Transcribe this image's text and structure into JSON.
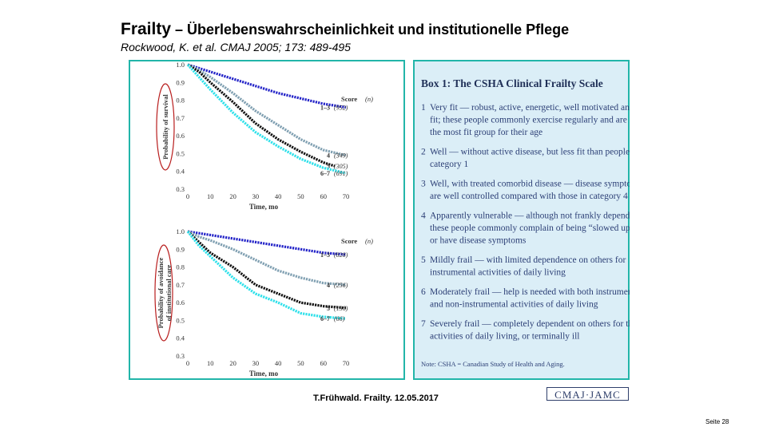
{
  "slide": {
    "title_bold": "Frailty",
    "title_rest": " – Überlebenswahrscheinlichkeit und institutionelle Pflege",
    "subtitle": "Rockwood, K. et al. CMAJ 2005; 173: 489-495",
    "footer": "T.Frühwald. Frailty. 12.05.2017",
    "logo_text": "CMAJ·JAMC",
    "page_number": "Seite 28"
  },
  "box": {
    "title": "Box 1: The CSHA Clinical Frailty Scale",
    "items": [
      {
        "num": "1",
        "lines": [
          "Very fit — robust, active, energetic, well motivated and",
          "fit; these people commonly exercise regularly and are in",
          "the most fit group for their age"
        ]
      },
      {
        "num": "2",
        "lines": [
          "Well — without active disease, but less fit than people in",
          "category 1"
        ]
      },
      {
        "num": "3",
        "lines": [
          "Well, with treated comorbid disease — disease symptoms",
          "are well controlled compared with those in category 4"
        ]
      },
      {
        "num": "4",
        "lines": [
          "Apparently vulnerable — although not frankly dependent,",
          "these people commonly complain of being “slowed up”",
          "or have disease symptoms"
        ]
      },
      {
        "num": "5",
        "lines": [
          "Mildly frail — with limited dependence on others for",
          "instrumental activities of daily living"
        ]
      },
      {
        "num": "6",
        "lines": [
          "Moderately frail — help is needed with both instrumental",
          "and non-instrumental activities of daily living"
        ]
      },
      {
        "num": "7",
        "lines": [
          "Severely frail — completely dependent on others for the",
          "activities of daily living, or terminally ill"
        ]
      }
    ],
    "note": "Note: CSHA = Canadian Study of Health and Aging."
  },
  "chart_data": [
    {
      "type": "line",
      "ylabel": "Probability of survival",
      "xlabel": "Time, mo",
      "x_ticks": [
        0,
        10,
        20,
        30,
        40,
        50,
        60,
        70
      ],
      "y_ticks": [
        "0.3",
        "0.4",
        "0.5",
        "0.6",
        "0.7",
        "0.8",
        "0.9",
        "1.0"
      ],
      "xlim": [
        0,
        70
      ],
      "ylim": [
        0.3,
        1.0
      ],
      "legend_title": "Score",
      "legend_n": "(n)",
      "series": [
        {
          "name": "1–3",
          "n": "(952)",
          "color": "#2424c8",
          "x": [
            0,
            5,
            10,
            20,
            30,
            40,
            50,
            60,
            70
          ],
          "y": [
            1.0,
            0.98,
            0.96,
            0.92,
            0.88,
            0.84,
            0.81,
            0.78,
            0.76
          ]
        },
        {
          "name": "4",
          "n": "(349)",
          "color": "#7f9fb1",
          "x": [
            0,
            5,
            10,
            20,
            30,
            40,
            50,
            60,
            70
          ],
          "y": [
            1.0,
            0.97,
            0.93,
            0.84,
            0.74,
            0.66,
            0.58,
            0.52,
            0.49
          ]
        },
        {
          "name": "5",
          "n": "(305)",
          "color": "#111111",
          "x": [
            0,
            5,
            10,
            20,
            30,
            40,
            50,
            60,
            65
          ],
          "y": [
            1.0,
            0.96,
            0.9,
            0.79,
            0.67,
            0.58,
            0.51,
            0.45,
            0.43
          ]
        },
        {
          "name": "6–7",
          "n": "(691)",
          "color": "#2ee0ea",
          "x": [
            0,
            5,
            10,
            20,
            30,
            40,
            50,
            60,
            70
          ],
          "y": [
            1.0,
            0.93,
            0.86,
            0.73,
            0.62,
            0.54,
            0.47,
            0.42,
            0.39
          ]
        }
      ]
    },
    {
      "type": "line",
      "ylabel": "Probability of avoidance of institutional care",
      "xlabel": "Time, mo",
      "x_ticks": [
        0,
        10,
        20,
        30,
        40,
        50,
        60,
        70
      ],
      "y_ticks": [
        "0.3",
        "0.4",
        "0.5",
        "0.6",
        "0.7",
        "0.8",
        "0.9",
        "1.0"
      ],
      "xlim": [
        0,
        70
      ],
      "ylim": [
        0.3,
        1.0
      ],
      "legend_title": "Score",
      "legend_n": "(n)",
      "series": [
        {
          "name": "1–3",
          "n": "(828)",
          "color": "#2424c8",
          "x": [
            0,
            5,
            10,
            20,
            30,
            40,
            50,
            60,
            70
          ],
          "y": [
            1.0,
            0.99,
            0.98,
            0.96,
            0.94,
            0.92,
            0.9,
            0.88,
            0.87
          ]
        },
        {
          "name": "4",
          "n": "(256)",
          "color": "#7f9fb1",
          "x": [
            0,
            5,
            10,
            20,
            30,
            40,
            50,
            60,
            70
          ],
          "y": [
            1.0,
            0.97,
            0.95,
            0.9,
            0.84,
            0.78,
            0.74,
            0.71,
            0.7
          ]
        },
        {
          "name": "5",
          "n": "(136)",
          "color": "#111111",
          "x": [
            0,
            5,
            10,
            20,
            30,
            40,
            50,
            60,
            70
          ],
          "y": [
            1.0,
            0.94,
            0.88,
            0.8,
            0.7,
            0.65,
            0.6,
            0.58,
            0.57
          ]
        },
        {
          "name": "6–7",
          "n": "(66)",
          "color": "#2ee0ea",
          "x": [
            0,
            5,
            10,
            20,
            30,
            40,
            50,
            60,
            70
          ],
          "y": [
            1.0,
            0.92,
            0.86,
            0.74,
            0.65,
            0.6,
            0.54,
            0.52,
            0.51
          ]
        }
      ]
    }
  ]
}
